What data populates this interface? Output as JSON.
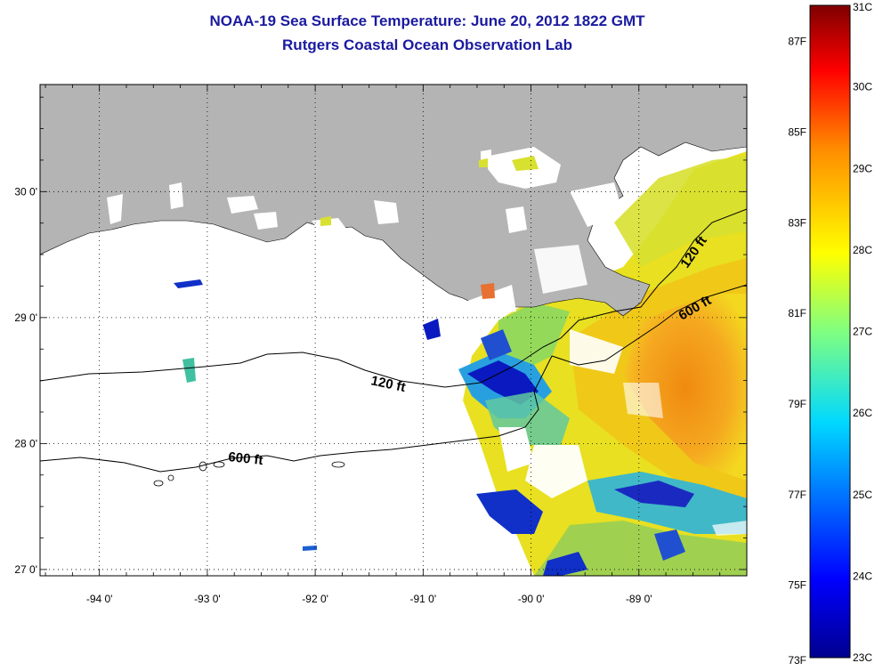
{
  "header": {
    "title": "NOAA-19 Sea Surface Temperature:  June 20, 2012 1822 GMT",
    "subtitle": "Rutgers Coastal Ocean Observation Lab"
  },
  "axes": {
    "lat_labels": [
      {
        "value": 30,
        "text": "30 0'"
      },
      {
        "value": 29,
        "text": "29 0'"
      },
      {
        "value": 28,
        "text": "28 0'"
      },
      {
        "value": 27,
        "text": "27 0'"
      }
    ],
    "lon_labels": [
      {
        "value": -94,
        "text": "-94 0'"
      },
      {
        "value": -93,
        "text": "-93 0'"
      },
      {
        "value": -92,
        "text": "-92 0'"
      },
      {
        "value": -91,
        "text": "-91 0'"
      },
      {
        "value": -90,
        "text": "-90 0'"
      },
      {
        "value": -89,
        "text": "-89 0'"
      }
    ],
    "lon_range": [
      -94.55,
      -88.0
    ],
    "lat_range": [
      26.95,
      30.85
    ],
    "grid": "dotted"
  },
  "contours": [
    {
      "label": "120 ft"
    },
    {
      "label": "600 ft"
    },
    {
      "label": "120 ft"
    },
    {
      "label": "600 ft"
    }
  ],
  "colorbar": {
    "celsius_labels": [
      "31C",
      "30C",
      "29C",
      "28C",
      "27C",
      "26C",
      "25C",
      "24C",
      "23C"
    ],
    "fahrenheit_labels": [
      "87F",
      "85F",
      "83F",
      "81F",
      "79F",
      "77F",
      "75F",
      "73F"
    ],
    "range_c": [
      23,
      31
    ],
    "colors": {
      "cold": "#00008f",
      "cool": "#00c8ff",
      "mid": "#ffff00",
      "warm": "#ff8c00",
      "hot": "#7f0000"
    }
  },
  "colors": {
    "land": "#b4b4b4",
    "title": "#1a1aa0",
    "water_nodata": "#ffffff"
  }
}
